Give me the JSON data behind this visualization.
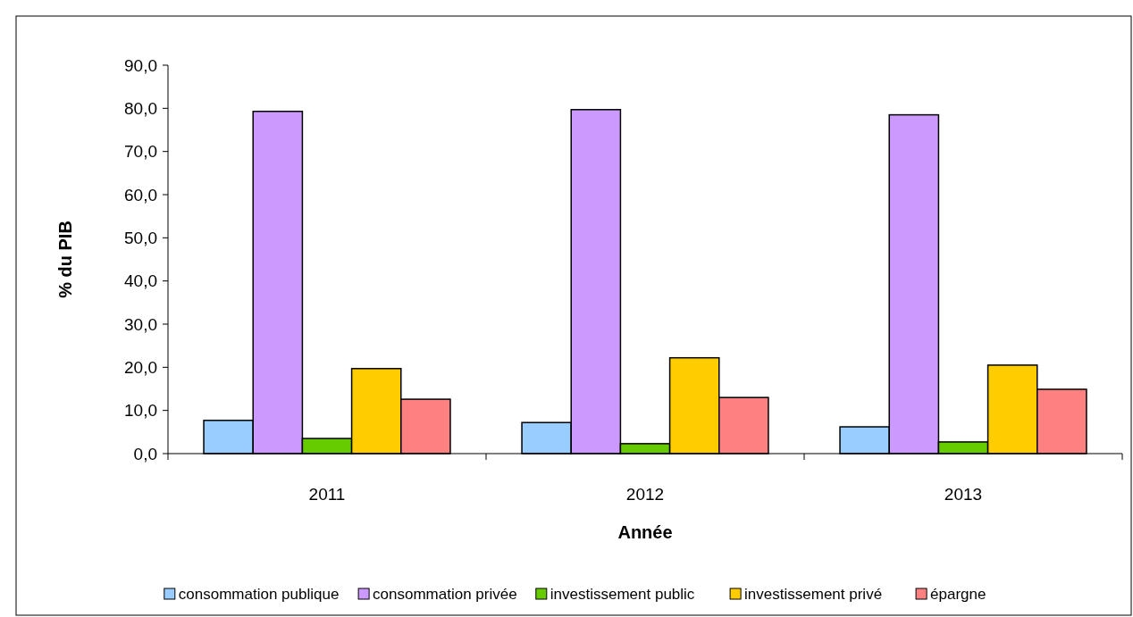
{
  "chart_data": {
    "type": "bar",
    "xlabel": "Année",
    "ylabel": "% du PIB",
    "categories": [
      "2011",
      "2012",
      "2013"
    ],
    "series": [
      {
        "name": "consommation publique",
        "color": "#99ccff",
        "values": [
          7.7,
          7.2,
          6.2
        ]
      },
      {
        "name": "consommation privée",
        "color": "#cc99ff",
        "values": [
          79.3,
          79.7,
          78.5
        ]
      },
      {
        "name": "investissement public",
        "color": "#66cc00",
        "values": [
          3.5,
          2.3,
          2.7
        ]
      },
      {
        "name": "investissement privé",
        "color": "#ffcc00",
        "values": [
          19.7,
          22.2,
          20.5
        ]
      },
      {
        "name": "épargne",
        "color": "#ff8080",
        "values": [
          12.6,
          13.0,
          14.9
        ]
      }
    ],
    "ylim": [
      0,
      90
    ],
    "yticks": [
      {
        "value": 0,
        "label": "0,0"
      },
      {
        "value": 10,
        "label": "10,0"
      },
      {
        "value": 20,
        "label": "20,0"
      },
      {
        "value": 30,
        "label": "30,0"
      },
      {
        "value": 40,
        "label": "40,0"
      },
      {
        "value": 50,
        "label": "50,0"
      },
      {
        "value": 60,
        "label": "60,0"
      },
      {
        "value": 70,
        "label": "70,0"
      },
      {
        "value": 80,
        "label": "80,0"
      },
      {
        "value": 90,
        "label": "90,0"
      }
    ],
    "grid": false,
    "legend": "bottom"
  }
}
